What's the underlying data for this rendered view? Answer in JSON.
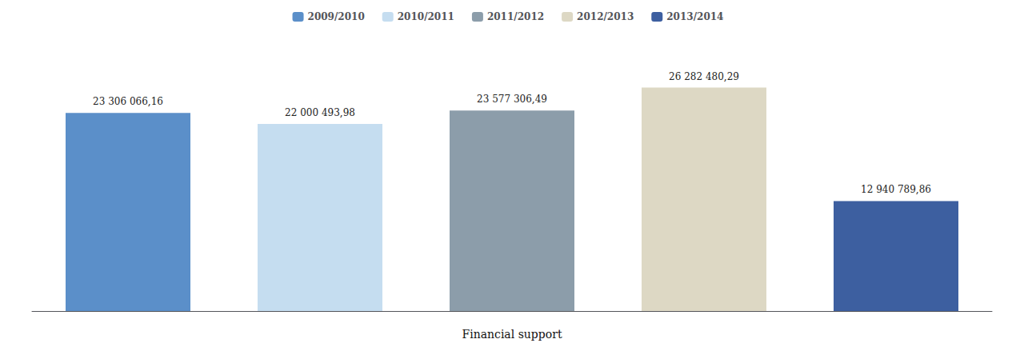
{
  "chart_data": {
    "type": "bar",
    "categories": [
      "2009/2010",
      "2010/2011",
      "2011/2012",
      "2012/2013",
      "2013/2014"
    ],
    "values": [
      23306066.16,
      22000493.98,
      23577306.49,
      26282480.29,
      12940789.86
    ],
    "value_labels": [
      "23 306 066,16",
      "22 000 493,98",
      "23 577 306,49",
      "26 282 480,29",
      "12 940 789,86"
    ],
    "colors": [
      "#5b8fc9",
      "#c5ddf0",
      "#8c9daa",
      "#ddd8c4",
      "#3d5fa0"
    ],
    "xlabel": "Financial support",
    "ylim": [
      0,
      30000000
    ],
    "data_labels": true,
    "tick_labels": false,
    "grid": false,
    "legend": "top"
  }
}
